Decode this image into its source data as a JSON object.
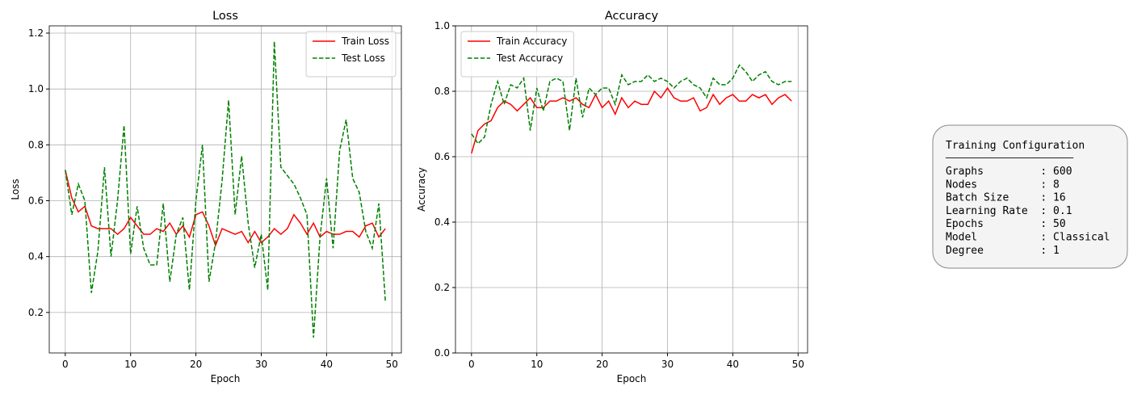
{
  "chart_data": [
    {
      "type": "line",
      "title": "Loss",
      "x_label": "Epoch",
      "y_label": "Loss",
      "x": [
        0,
        1,
        2,
        3,
        4,
        5,
        6,
        7,
        8,
        9,
        10,
        11,
        12,
        13,
        14,
        15,
        16,
        17,
        18,
        19,
        20,
        21,
        22,
        23,
        24,
        25,
        26,
        27,
        28,
        29,
        30,
        31,
        32,
        33,
        34,
        35,
        36,
        37,
        38,
        39,
        40,
        41,
        42,
        43,
        44,
        45,
        46,
        47,
        48,
        49
      ],
      "series": [
        {
          "name": "Train Loss",
          "color": "#ff0000",
          "dash": "solid",
          "values": [
            0.71,
            0.61,
            0.56,
            0.58,
            0.51,
            0.5,
            0.5,
            0.5,
            0.48,
            0.5,
            0.54,
            0.51,
            0.48,
            0.48,
            0.5,
            0.49,
            0.52,
            0.48,
            0.51,
            0.47,
            0.55,
            0.56,
            0.51,
            0.44,
            0.5,
            0.49,
            0.48,
            0.49,
            0.45,
            0.49,
            0.45,
            0.47,
            0.5,
            0.48,
            0.5,
            0.55,
            0.52,
            0.48,
            0.52,
            0.47,
            0.49,
            0.48,
            0.48,
            0.49,
            0.49,
            0.47,
            0.51,
            0.52,
            0.47,
            0.5
          ]
        },
        {
          "name": "Test Loss",
          "color": "#008000",
          "dash": "dashed",
          "values": [
            0.71,
            0.55,
            0.66,
            0.6,
            0.27,
            0.42,
            0.72,
            0.4,
            0.6,
            0.87,
            0.41,
            0.58,
            0.43,
            0.37,
            0.37,
            0.59,
            0.31,
            0.48,
            0.54,
            0.28,
            0.6,
            0.8,
            0.31,
            0.45,
            0.67,
            0.96,
            0.55,
            0.76,
            0.52,
            0.36,
            0.48,
            0.28,
            1.17,
            0.72,
            0.69,
            0.66,
            0.61,
            0.55,
            0.11,
            0.47,
            0.68,
            0.43,
            0.78,
            0.89,
            0.68,
            0.63,
            0.49,
            0.43,
            0.59,
            0.24
          ]
        }
      ],
      "xlim": [
        -2.45,
        51.45
      ],
      "xticks": [
        0,
        10,
        20,
        30,
        40,
        50
      ],
      "ylim": [
        0.055,
        1.226
      ],
      "yticks": [
        0.2,
        0.4,
        0.6,
        0.8,
        {
          "value": 1,
          "label": "1.0"
        },
        1.2
      ],
      "grid": true,
      "legend": "upper right"
    },
    {
      "type": "line",
      "title": "Accuracy",
      "x_label": "Epoch",
      "y_label": "Accuracy",
      "x": [
        0,
        1,
        2,
        3,
        4,
        5,
        6,
        7,
        8,
        9,
        10,
        11,
        12,
        13,
        14,
        15,
        16,
        17,
        18,
        19,
        20,
        21,
        22,
        23,
        24,
        25,
        26,
        27,
        28,
        29,
        30,
        31,
        32,
        33,
        34,
        35,
        36,
        37,
        38,
        39,
        40,
        41,
        42,
        43,
        44,
        45,
        46,
        47,
        48,
        49
      ],
      "series": [
        {
          "name": "Train Accuracy",
          "color": "#ff0000",
          "dash": "solid",
          "values": [
            0.61,
            0.68,
            0.7,
            0.71,
            0.75,
            0.77,
            0.76,
            0.74,
            0.76,
            0.78,
            0.75,
            0.75,
            0.77,
            0.77,
            0.78,
            0.77,
            0.78,
            0.76,
            0.75,
            0.79,
            0.75,
            0.77,
            0.73,
            0.78,
            0.75,
            0.77,
            0.76,
            0.76,
            0.8,
            0.78,
            0.81,
            0.78,
            0.77,
            0.77,
            0.78,
            0.74,
            0.75,
            0.79,
            0.76,
            0.78,
            0.79,
            0.77,
            0.77,
            0.79,
            0.78,
            0.79,
            0.76,
            0.78,
            0.79,
            0.77
          ]
        },
        {
          "name": "Test Accuracy",
          "color": "#008000",
          "dash": "dashed",
          "values": [
            0.67,
            0.64,
            0.66,
            0.76,
            0.83,
            0.76,
            0.82,
            0.81,
            0.84,
            0.68,
            0.81,
            0.74,
            0.83,
            0.84,
            0.83,
            0.68,
            0.84,
            0.72,
            0.81,
            0.79,
            0.81,
            0.81,
            0.76,
            0.85,
            0.82,
            0.83,
            0.83,
            0.85,
            0.83,
            0.84,
            0.83,
            0.81,
            0.83,
            0.84,
            0.82,
            0.81,
            0.78,
            0.84,
            0.82,
            0.82,
            0.84,
            0.88,
            0.86,
            0.83,
            0.85,
            0.86,
            0.83,
            0.82,
            0.83,
            0.83
          ]
        }
      ],
      "xlim": [
        -2.45,
        51.45
      ],
      "xticks": [
        0,
        10,
        20,
        30,
        40,
        50
      ],
      "ylim": [
        0,
        1
      ],
      "yticks": [
        {
          "value": 0,
          "label": "0.0"
        },
        0.2,
        0.4,
        0.6,
        0.8,
        {
          "value": 1,
          "label": "1.0"
        }
      ],
      "grid": true,
      "legend": "upper left"
    }
  ],
  "config": {
    "title": "Training Configuration",
    "separator": "─────────────────────────",
    "lines": [
      "Graphs         : 600",
      "Nodes          : 8",
      "Batch Size     : 16",
      "Learning Rate  : 0.1",
      "Epochs         : 50",
      "Model          : Classical",
      "Degree         : 1"
    ]
  }
}
